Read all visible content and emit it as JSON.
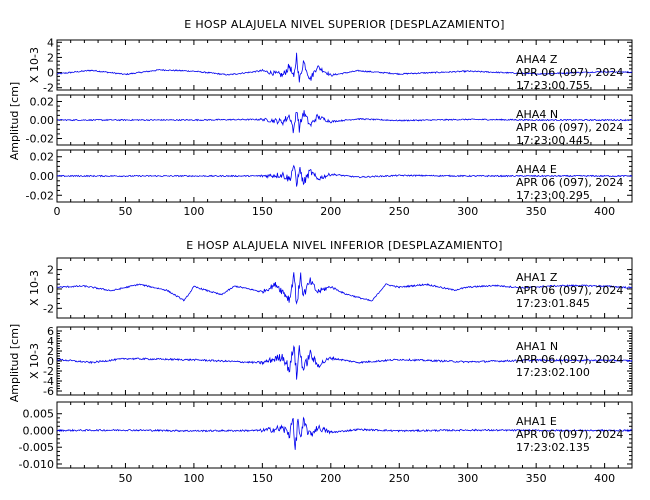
{
  "colors": {
    "trace": "#0000ee",
    "axes": "#000000",
    "background": "#ffffff"
  },
  "chart_data": [
    {
      "type": "line",
      "title": "E HOSP ALAJUELA NIVEL SUPERIOR [DESPLAZAMIENTO]",
      "ylabel": "Amplitud [cm]",
      "xlim": [
        0,
        420
      ],
      "x_ticks": [
        0,
        50,
        100,
        150,
        200,
        250,
        300,
        350,
        400
      ],
      "panels": [
        {
          "station": "AHA4",
          "component": "Z",
          "date": "APR 06 (097), 2024",
          "time": "17:23:00.755",
          "scale_label": "X 10-3",
          "ylim": [
            -2.3,
            4.3
          ],
          "y_ticks": [
            -2,
            0,
            2,
            4
          ],
          "x": [
            0,
            25,
            50,
            75,
            100,
            125,
            150,
            165,
            170,
            173,
            175,
            177,
            180,
            185,
            190,
            200,
            220,
            250,
            300,
            350,
            400,
            420
          ],
          "values": [
            -0.3,
            0.5,
            -0.4,
            0.6,
            0.3,
            -0.5,
            0.4,
            -0.6,
            1.5,
            -1.5,
            3.9,
            -2.0,
            2.5,
            -1.5,
            1.3,
            -0.6,
            0.4,
            -0.3,
            0.3,
            -0.3,
            0.2,
            0.1
          ]
        },
        {
          "station": "AHA4",
          "component": "N",
          "date": "APR 06 (097), 2024",
          "time": "17:23:00.445",
          "scale_label": "",
          "ylim": [
            -0.027,
            0.027
          ],
          "y_ticks": [
            -0.02,
            0.0,
            0.02
          ],
          "x": [
            0,
            50,
            100,
            150,
            165,
            170,
            173,
            175,
            177,
            180,
            185,
            190,
            200,
            220,
            250,
            300,
            350,
            400,
            420
          ],
          "values": [
            0.0,
            0.0,
            0.0,
            0.001,
            -0.003,
            0.008,
            -0.022,
            0.022,
            -0.015,
            0.014,
            -0.01,
            0.006,
            -0.003,
            0.002,
            -0.001,
            0.001,
            0.0,
            0.0,
            0.0
          ]
        },
        {
          "station": "AHA4",
          "component": "E",
          "date": "APR 06 (097), 2024",
          "time": "17:23:00.295",
          "scale_label": "",
          "ylim": [
            -0.027,
            0.027
          ],
          "y_ticks": [
            -0.02,
            0.0,
            0.02
          ],
          "x": [
            0,
            50,
            100,
            150,
            165,
            170,
            173,
            175,
            177,
            180,
            185,
            190,
            200,
            220,
            250,
            300,
            350,
            400,
            420
          ],
          "values": [
            0.0,
            0.0,
            0.0,
            0.0,
            0.002,
            -0.006,
            0.02,
            -0.018,
            0.014,
            -0.012,
            0.008,
            -0.005,
            0.003,
            -0.002,
            0.001,
            0.0,
            0.0,
            0.0,
            0.0
          ]
        }
      ]
    },
    {
      "type": "line",
      "title": "E HOSP ALAJUELA NIVEL INFERIOR [DESPLAZAMIENTO]",
      "ylabel": "Amplitud [cm]",
      "xlim": [
        0,
        420
      ],
      "x_ticks": [
        50,
        100,
        150,
        200,
        250,
        300,
        350,
        400
      ],
      "panels": [
        {
          "station": "AHA1",
          "component": "Z",
          "date": "APR 06 (097), 2024",
          "time": "17:23:01.845",
          "scale_label": "X 10-3",
          "ylim": [
            -3.0,
            3.2
          ],
          "y_ticks": [
            -2,
            0,
            2
          ],
          "x": [
            0,
            20,
            40,
            60,
            80,
            93,
            100,
            120,
            130,
            150,
            160,
            170,
            173,
            175,
            178,
            180,
            185,
            190,
            200,
            210,
            230,
            240,
            250,
            270,
            290,
            300,
            320,
            340,
            360,
            380,
            400,
            420
          ],
          "values": [
            0.3,
            0.5,
            -0.3,
            0.8,
            -0.2,
            -2.0,
            0.4,
            -1.0,
            0.5,
            -0.5,
            0.8,
            -1.8,
            2.8,
            -2.5,
            2.0,
            -1.0,
            1.3,
            -0.5,
            0.4,
            -0.8,
            -2.1,
            0.8,
            0.3,
            0.8,
            -0.2,
            0.3,
            0.6,
            0.2,
            0.5,
            0.6,
            0.5,
            0.2
          ]
        },
        {
          "station": "AHA1",
          "component": "N",
          "date": "APR 06 (097), 2024",
          "time": "17:23:02.100",
          "scale_label": "X 10-3",
          "ylim": [
            -6.8,
            6.8
          ],
          "y_ticks": [
            -6,
            -4,
            -2,
            0,
            2,
            4,
            6
          ],
          "x": [
            0,
            25,
            50,
            100,
            150,
            165,
            170,
            173,
            175,
            177,
            180,
            185,
            190,
            200,
            220,
            250,
            300,
            350,
            400,
            420
          ],
          "values": [
            0.5,
            -0.5,
            0.8,
            0.4,
            -0.6,
            1.5,
            -3.0,
            6.0,
            -5.5,
            4.5,
            -3.0,
            2.5,
            -1.5,
            1.0,
            -0.5,
            0.5,
            -0.3,
            0.3,
            0.2,
            0.1
          ]
        },
        {
          "station": "AHA1",
          "component": "E",
          "date": "APR 06 (097), 2024",
          "time": "17:23:02.135",
          "scale_label": "",
          "ylim": [
            -0.0112,
            0.0085
          ],
          "y_ticks": [
            -0.01,
            -0.005,
            0.0,
            0.005
          ],
          "x": [
            0,
            50,
            100,
            150,
            165,
            170,
            172,
            174,
            176,
            178,
            180,
            185,
            190,
            200,
            220,
            250,
            300,
            350,
            400,
            420
          ],
          "values": [
            0.0,
            0.0002,
            -0.0002,
            0.0,
            0.001,
            -0.002,
            0.0078,
            -0.0102,
            0.006,
            -0.005,
            0.004,
            -0.0025,
            0.0015,
            -0.001,
            0.0005,
            -0.0002,
            0.0002,
            0.0,
            0.0,
            0.0
          ]
        }
      ]
    }
  ]
}
